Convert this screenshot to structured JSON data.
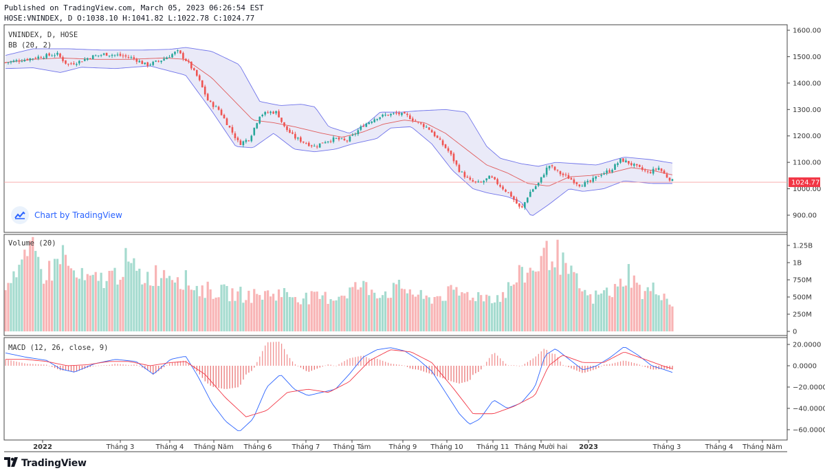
{
  "header": {
    "published_line": "Published on TradingView.com, March 05, 2023 06:26:54 EST",
    "ohlc_line": "HOSE:VNINDEX, D O:1038.10 H:1041.82 L:1022.78 C:1024.77"
  },
  "watermark": {
    "text": "Chart by TradingView",
    "icon": "tradingview-logo-icon"
  },
  "brand": {
    "text": "TradingView",
    "icon": "tradingview-logo-icon"
  },
  "colors": {
    "up": "#26a69a",
    "down": "#ef5350",
    "band_fill": "#e6e6f7",
    "band_line": "#6f73ea",
    "basis": "#e05b5b",
    "macd": "#2962ff",
    "signal": "#f23645",
    "last_price": "#f23645"
  },
  "chart_data": [
    {
      "type": "candlestick",
      "title": "VNINDEX, D, HOSE",
      "indicator": "BB (20, 2)",
      "ylim": [
        860,
        1620
      ],
      "y_ticks": [
        "1600.00",
        "1500.00",
        "1400.00",
        "1300.00",
        "1200.00",
        "1100.00",
        "1000.00",
        "900.00"
      ],
      "last_price_label": "1024.77",
      "last_price": 1024.77,
      "close_path": [
        [
          0,
          1478
        ],
        [
          25,
          1488
        ],
        [
          50,
          1500
        ],
        [
          75,
          1510
        ],
        [
          90,
          1470
        ],
        [
          105,
          1480
        ],
        [
          125,
          1500
        ],
        [
          145,
          1510
        ],
        [
          165,
          1505
        ],
        [
          185,
          1495
        ],
        [
          205,
          1468
        ],
        [
          225,
          1485
        ],
        [
          250,
          1520
        ],
        [
          265,
          1480
        ],
        [
          280,
          1420
        ],
        [
          295,
          1330
        ],
        [
          310,
          1300
        ],
        [
          325,
          1235
        ],
        [
          340,
          1170
        ],
        [
          355,
          1190
        ],
        [
          370,
          1280
        ],
        [
          385,
          1290
        ],
        [
          395,
          1290
        ],
        [
          405,
          1235
        ],
        [
          420,
          1195
        ],
        [
          435,
          1175
        ],
        [
          450,
          1160
        ],
        [
          465,
          1180
        ],
        [
          480,
          1190
        ],
        [
          495,
          1180
        ],
        [
          505,
          1200
        ],
        [
          520,
          1240
        ],
        [
          540,
          1270
        ],
        [
          555,
          1280
        ],
        [
          570,
          1285
        ],
        [
          585,
          1275
        ],
        [
          600,
          1250
        ],
        [
          615,
          1230
        ],
        [
          630,
          1185
        ],
        [
          645,
          1140
        ],
        [
          660,
          1070
        ],
        [
          675,
          1030
        ],
        [
          690,
          1020
        ],
        [
          705,
          1045
        ],
        [
          720,
          1010
        ],
        [
          735,
          975
        ],
        [
          750,
          920
        ],
        [
          762,
          985
        ],
        [
          775,
          1020
        ],
        [
          790,
          1090
        ],
        [
          805,
          1060
        ],
        [
          820,
          1040
        ],
        [
          835,
          1015
        ],
        [
          850,
          1025
        ],
        [
          865,
          1055
        ],
        [
          880,
          1070
        ],
        [
          895,
          1110
        ],
        [
          905,
          1100
        ],
        [
          920,
          1080
        ],
        [
          935,
          1060
        ],
        [
          950,
          1080
        ],
        [
          960,
          1050
        ],
        [
          970,
          1030
        ],
        [
          978,
          1025
        ]
      ],
      "band_upper": [
        [
          0,
          1505
        ],
        [
          40,
          1530
        ],
        [
          90,
          1530
        ],
        [
          140,
          1525
        ],
        [
          200,
          1525
        ],
        [
          240,
          1528
        ],
        [
          262,
          1535
        ],
        [
          300,
          1520
        ],
        [
          340,
          1470
        ],
        [
          370,
          1330
        ],
        [
          400,
          1315
        ],
        [
          430,
          1320
        ],
        [
          450,
          1310
        ],
        [
          470,
          1235
        ],
        [
          500,
          1210
        ],
        [
          525,
          1245
        ],
        [
          545,
          1290
        ],
        [
          575,
          1290
        ],
        [
          600,
          1295
        ],
        [
          640,
          1300
        ],
        [
          670,
          1290
        ],
        [
          700,
          1160
        ],
        [
          720,
          1115
        ],
        [
          750,
          1095
        ],
        [
          775,
          1085
        ],
        [
          800,
          1100
        ],
        [
          830,
          1095
        ],
        [
          860,
          1090
        ],
        [
          900,
          1120
        ],
        [
          940,
          1110
        ],
        [
          975,
          1095
        ]
      ],
      "band_lower": [
        [
          0,
          1455
        ],
        [
          40,
          1458
        ],
        [
          80,
          1440
        ],
        [
          110,
          1460
        ],
        [
          160,
          1455
        ],
        [
          210,
          1465
        ],
        [
          262,
          1430
        ],
        [
          300,
          1295
        ],
        [
          335,
          1160
        ],
        [
          360,
          1155
        ],
        [
          390,
          1210
        ],
        [
          420,
          1150
        ],
        [
          450,
          1140
        ],
        [
          480,
          1150
        ],
        [
          505,
          1170
        ],
        [
          540,
          1190
        ],
        [
          560,
          1230
        ],
        [
          590,
          1235
        ],
        [
          620,
          1170
        ],
        [
          650,
          1070
        ],
        [
          680,
          1000
        ],
        [
          700,
          985
        ],
        [
          730,
          970
        ],
        [
          750,
          950
        ],
        [
          765,
          895
        ],
        [
          790,
          940
        ],
        [
          820,
          1000
        ],
        [
          840,
          990
        ],
        [
          870,
          1000
        ],
        [
          900,
          1030
        ],
        [
          940,
          1020
        ],
        [
          975,
          1020
        ]
      ],
      "basis": [
        [
          0,
          1478
        ],
        [
          40,
          1490
        ],
        [
          80,
          1495
        ],
        [
          130,
          1490
        ],
        [
          180,
          1490
        ],
        [
          230,
          1495
        ],
        [
          262,
          1490
        ],
        [
          300,
          1420
        ],
        [
          330,
          1340
        ],
        [
          360,
          1260
        ],
        [
          390,
          1250
        ],
        [
          420,
          1235
        ],
        [
          460,
          1210
        ],
        [
          490,
          1195
        ],
        [
          520,
          1215
        ],
        [
          550,
          1245
        ],
        [
          580,
          1260
        ],
        [
          610,
          1250
        ],
        [
          640,
          1210
        ],
        [
          670,
          1150
        ],
        [
          700,
          1090
        ],
        [
          730,
          1060
        ],
        [
          760,
          1020
        ],
        [
          790,
          1010
        ],
        [
          820,
          1045
        ],
        [
          850,
          1050
        ],
        [
          880,
          1060
        ],
        [
          910,
          1080
        ],
        [
          940,
          1070
        ],
        [
          975,
          1050
        ]
      ]
    },
    {
      "type": "bar",
      "title": "Volume (20)",
      "ylim": [
        0,
        1400
      ],
      "y_tick_values": [
        1250,
        1000,
        750,
        500,
        250,
        0
      ],
      "y_ticks": [
        "1.25B",
        "1B",
        "750M",
        "500M",
        "250M",
        "0"
      ],
      "volume_path": [
        [
          0,
          720
        ],
        [
          15,
          900
        ],
        [
          30,
          1000
        ],
        [
          40,
          1150
        ],
        [
          55,
          850
        ],
        [
          70,
          900
        ],
        [
          80,
          1180
        ],
        [
          100,
          800
        ],
        [
          125,
          720
        ],
        [
          160,
          820
        ],
        [
          175,
          1000
        ],
        [
          200,
          780
        ],
        [
          240,
          880
        ],
        [
          280,
          620
        ],
        [
          320,
          560
        ],
        [
          360,
          520
        ],
        [
          400,
          560
        ],
        [
          440,
          480
        ],
        [
          480,
          500
        ],
        [
          515,
          660
        ],
        [
          550,
          560
        ],
        [
          580,
          640
        ],
        [
          610,
          460
        ],
        [
          650,
          560
        ],
        [
          690,
          520
        ],
        [
          720,
          500
        ],
        [
          750,
          820
        ],
        [
          765,
          880
        ],
        [
          785,
          1100
        ],
        [
          800,
          1160
        ],
        [
          815,
          880
        ],
        [
          830,
          720
        ],
        [
          850,
          460
        ],
        [
          870,
          560
        ],
        [
          890,
          600
        ],
        [
          905,
          880
        ],
        [
          925,
          560
        ],
        [
          950,
          620
        ],
        [
          965,
          440
        ],
        [
          978,
          380
        ]
      ]
    },
    {
      "type": "line",
      "title": "MACD (12, 26, close, 9)",
      "ylim": [
        -65,
        24
      ],
      "y_tick_values": [
        20,
        0,
        -20,
        -40,
        -60
      ],
      "y_ticks": [
        "20.0000",
        "0.0000",
        "−20.0000",
        "−40.0000",
        "−60.0000"
      ],
      "macd": [
        [
          0,
          12
        ],
        [
          30,
          8
        ],
        [
          60,
          5
        ],
        [
          80,
          -3
        ],
        [
          100,
          -6
        ],
        [
          130,
          2
        ],
        [
          160,
          6
        ],
        [
          190,
          4
        ],
        [
          215,
          -8
        ],
        [
          240,
          6
        ],
        [
          262,
          9
        ],
        [
          280,
          -10
        ],
        [
          300,
          -35
        ],
        [
          320,
          -52
        ],
        [
          340,
          -62
        ],
        [
          360,
          -50
        ],
        [
          380,
          -20
        ],
        [
          400,
          -8
        ],
        [
          420,
          -22
        ],
        [
          440,
          -28
        ],
        [
          460,
          -25
        ],
        [
          480,
          -22
        ],
        [
          500,
          -8
        ],
        [
          520,
          8
        ],
        [
          540,
          15
        ],
        [
          560,
          17
        ],
        [
          580,
          14
        ],
        [
          600,
          6
        ],
        [
          620,
          -5
        ],
        [
          640,
          -25
        ],
        [
          660,
          -45
        ],
        [
          675,
          -55
        ],
        [
          690,
          -50
        ],
        [
          710,
          -32
        ],
        [
          730,
          -40
        ],
        [
          750,
          -35
        ],
        [
          770,
          -20
        ],
        [
          785,
          10
        ],
        [
          800,
          16
        ],
        [
          820,
          6
        ],
        [
          840,
          -4
        ],
        [
          860,
          0
        ],
        [
          880,
          8
        ],
        [
          900,
          18
        ],
        [
          920,
          10
        ],
        [
          940,
          0
        ],
        [
          960,
          -4
        ],
        [
          978,
          -8
        ]
      ],
      "signal": [
        [
          0,
          6
        ],
        [
          30,
          6
        ],
        [
          60,
          4
        ],
        [
          90,
          0
        ],
        [
          120,
          1
        ],
        [
          150,
          4
        ],
        [
          180,
          4
        ],
        [
          210,
          0
        ],
        [
          240,
          3
        ],
        [
          262,
          4
        ],
        [
          290,
          -8
        ],
        [
          320,
          -30
        ],
        [
          350,
          -48
        ],
        [
          380,
          -42
        ],
        [
          410,
          -25
        ],
        [
          440,
          -22
        ],
        [
          470,
          -25
        ],
        [
          500,
          -15
        ],
        [
          530,
          5
        ],
        [
          560,
          15
        ],
        [
          590,
          13
        ],
        [
          620,
          3
        ],
        [
          650,
          -20
        ],
        [
          680,
          -45
        ],
        [
          710,
          -45
        ],
        [
          740,
          -38
        ],
        [
          770,
          -28
        ],
        [
          790,
          0
        ],
        [
          810,
          10
        ],
        [
          840,
          3
        ],
        [
          870,
          3
        ],
        [
          900,
          13
        ],
        [
          930,
          6
        ],
        [
          960,
          -1
        ],
        [
          978,
          -4
        ]
      ]
    },
    {
      "type": "time-axis",
      "x_tick_labels": [
        "2022",
        "Tháng 3",
        "Tháng 4",
        "Tháng Năm",
        "Tháng 6",
        "Tháng 7",
        "Tháng Tám",
        "Tháng 9",
        "Tháng 10",
        "Tháng 11",
        "Tháng Mười hai",
        "2023",
        "Tháng 3",
        "Tháng 4",
        "Tháng Năm"
      ],
      "bold_labels": [
        "2022",
        "2023"
      ]
    }
  ]
}
